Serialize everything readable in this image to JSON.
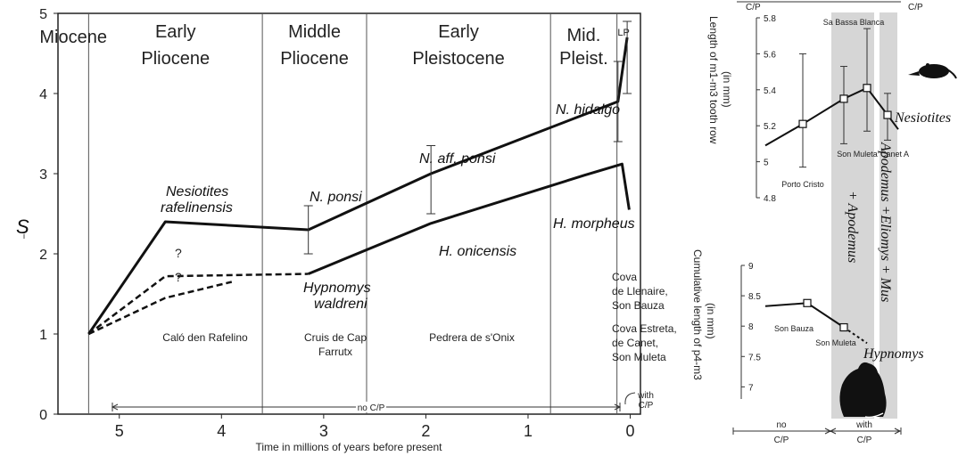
{
  "chart_data": [
    {
      "type": "line",
      "ylabel": "S",
      "xlabel": "Time in millions of years before present",
      "xlim": [
        5.6,
        -0.1
      ],
      "ylim": [
        0,
        5
      ],
      "x_ticks": [
        "5",
        "4",
        "3",
        "2",
        "1",
        "0"
      ],
      "y_ticks": [
        "0",
        "1",
        "2",
        "3",
        "4",
        "5"
      ],
      "epochs": [
        {
          "label": "Miocene",
          "start": 5.6,
          "end": 5.3
        },
        {
          "label": "Early Pliocene",
          "start": 5.3,
          "end": 3.6
        },
        {
          "label": "Middle Pliocene",
          "start": 3.6,
          "end": 2.58
        },
        {
          "label": "Early Pleistocene",
          "start": 2.58,
          "end": 0.78
        },
        {
          "label": "Mid. Pleist.",
          "start": 0.78,
          "end": 0.13
        },
        {
          "label": "LP",
          "start": 0.13,
          "end": 0.0
        }
      ],
      "series": [
        {
          "name": "Nesiotites",
          "style": "solid",
          "points": [
            {
              "x": 5.3,
              "y": 1.0
            },
            {
              "x": 4.55,
              "y": 2.4
            },
            {
              "x": 3.15,
              "y": 2.3
            },
            {
              "x": 1.95,
              "y": 3.0
            },
            {
              "x": 0.12,
              "y": 3.9
            },
            {
              "x": 0.03,
              "y": 4.7
            }
          ],
          "error_bars": [
            {
              "x": 3.15,
              "low": 2.0,
              "high": 2.6
            },
            {
              "x": 1.95,
              "low": 2.5,
              "high": 3.35
            },
            {
              "x": 0.12,
              "low": 3.4,
              "high": 4.4
            },
            {
              "x": 0.03,
              "low": 4.0,
              "high": 4.9
            }
          ]
        },
        {
          "name": "Hypnomys",
          "style": "solid",
          "points": [
            {
              "x": 3.15,
              "y": 1.75
            },
            {
              "x": 1.95,
              "y": 2.38
            },
            {
              "x": 0.45,
              "y": 2.98
            },
            {
              "x": 0.08,
              "y": 3.12
            },
            {
              "x": 0.01,
              "y": 2.55
            }
          ]
        },
        {
          "name": "Hypnomys (uncertain, upper)",
          "style": "dashed",
          "points": [
            {
              "x": 5.3,
              "y": 1.0
            },
            {
              "x": 4.55,
              "y": 1.72
            },
            {
              "x": 3.15,
              "y": 1.75
            }
          ]
        },
        {
          "name": "Hypnomys (uncertain, lower)",
          "style": "dashed",
          "points": [
            {
              "x": 5.3,
              "y": 1.0
            },
            {
              "x": 4.55,
              "y": 1.45
            },
            {
              "x": 3.9,
              "y": 1.65
            }
          ]
        }
      ],
      "annotations": {
        "question_marks": [
          "?",
          "?"
        ],
        "taxa": [
          "Nesiotites rafelinensis",
          "N. ponsi",
          "N. aff. ponsi",
          "N. hidalgo",
          "H. morpheus",
          "H. onicensis",
          "Hypnomys waldreni"
        ],
        "sites": [
          "Caló den Rafelino",
          "Cruis de Cap Farrutx",
          "Pedrera de s'Onix",
          "Cova de Llenaire, Son Bauza",
          "Cova Estreta, de Canet, Son Muleta"
        ],
        "range_bar": {
          "no_cp": "no C/P",
          "with_cp": "with C/P"
        }
      }
    },
    {
      "type": "line",
      "ylabel": "Length of m1-m3 tooth row (in mm)",
      "ylim": [
        4.8,
        5.8
      ],
      "y_ticks": [
        "4.8",
        "5",
        "5.2",
        "5.4",
        "5.6",
        "5.8"
      ],
      "series": [
        {
          "name": "Nesiotites",
          "points": [
            {
              "site": "Porto Cristo",
              "mean": 5.21,
              "low": 4.97,
              "high": 5.6
            },
            {
              "site": "Son Muleta",
              "mean": 5.35,
              "low": 5.1,
              "high": 5.53
            },
            {
              "site": "Sa Bassa Blanca",
              "mean": 5.41,
              "low": 5.17,
              "high": 5.74
            },
            {
              "site": "Canet A",
              "mean": 5.26,
              "low": 5.12,
              "high": 5.38
            }
          ]
        }
      ]
    },
    {
      "type": "line",
      "ylabel": "Cumulative length of p4-m3 (in mm)",
      "ylim": [
        6.8,
        9.0
      ],
      "y_ticks": [
        "7",
        "7.5",
        "8",
        "8.5",
        "9"
      ],
      "series": [
        {
          "name": "Hypnomys",
          "points": [
            {
              "site": "Son Bauza",
              "mean": 8.38
            },
            {
              "site": "Son Muleta",
              "mean": 7.98
            }
          ]
        }
      ]
    }
  ],
  "right_panel": {
    "top_labels": [
      "C/P",
      "C/P"
    ],
    "shaded_labels": [
      "+ Apodemus",
      "Apodemus +Eliomys + Mus"
    ],
    "taxon_labels": [
      "Nesiotites",
      "Hypnomys"
    ],
    "bottom_bar": {
      "no_cp": "no C/P",
      "with_cp": "with C/P"
    }
  }
}
